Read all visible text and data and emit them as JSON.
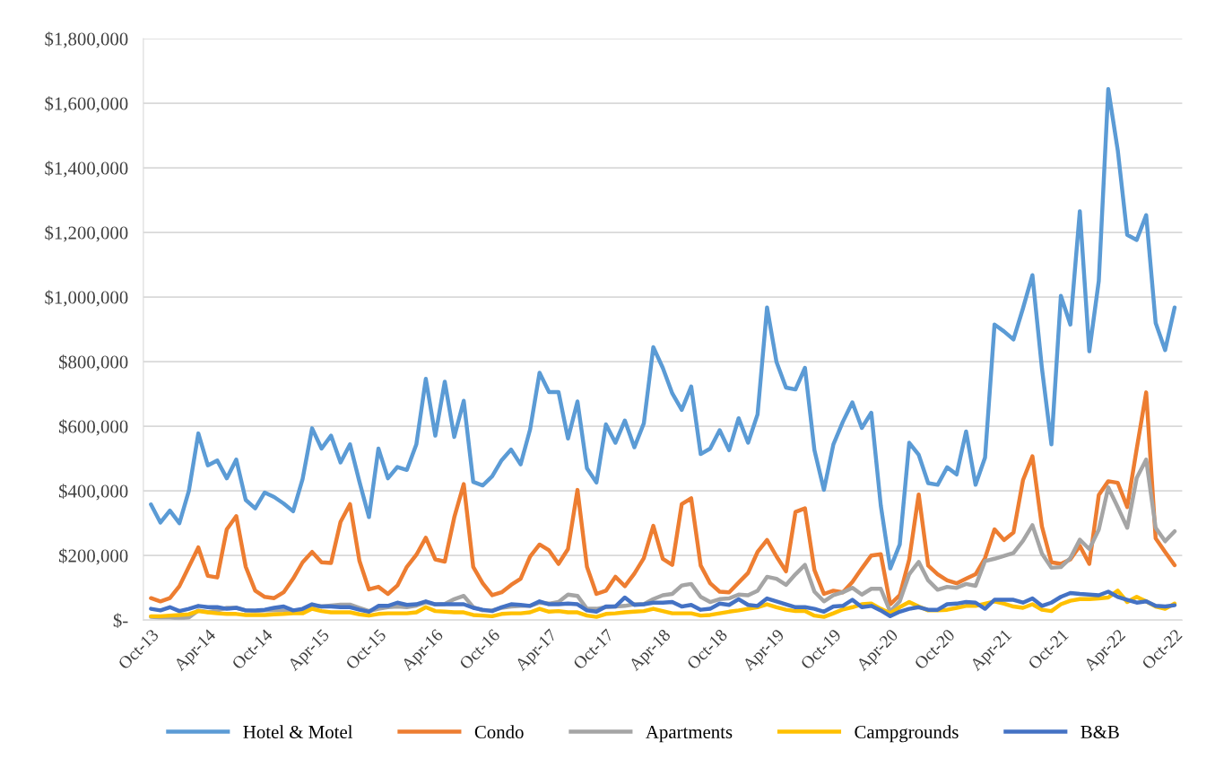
{
  "chart_data": {
    "type": "line",
    "categories": [
      "Oct-13",
      null,
      null,
      null,
      null,
      null,
      "Apr-14",
      null,
      null,
      null,
      null,
      null,
      "Oct-14",
      null,
      null,
      null,
      null,
      null,
      "Apr-15",
      null,
      null,
      null,
      null,
      null,
      "Oct-15",
      null,
      null,
      null,
      null,
      null,
      "Apr-16",
      null,
      null,
      null,
      null,
      null,
      "Oct-16",
      null,
      null,
      null,
      null,
      null,
      "Apr-17",
      null,
      null,
      null,
      null,
      null,
      "Oct-17",
      null,
      null,
      null,
      null,
      null,
      "Apr-18",
      null,
      null,
      null,
      null,
      null,
      "Oct-18",
      null,
      null,
      null,
      null,
      null,
      "Apr-19",
      null,
      null,
      null,
      null,
      null,
      "Oct-19",
      null,
      null,
      null,
      null,
      null,
      "Apr-20",
      null,
      null,
      null,
      null,
      null,
      "Oct-20",
      null,
      null,
      null,
      null,
      null,
      "Apr-21",
      null,
      null,
      null,
      null,
      null,
      "Oct-21",
      null,
      null,
      null,
      null,
      null,
      "Apr-22",
      null,
      null,
      null,
      null,
      null,
      "Oct-22"
    ],
    "series": [
      {
        "name": "Hotel & Motel",
        "color": "#5b9bd5",
        "values": [
          358000,
          302000,
          339000,
          300000,
          400000,
          578000,
          479000,
          494000,
          439000,
          497000,
          372000,
          346000,
          395000,
          381000,
          361000,
          337000,
          437000,
          594000,
          531000,
          571000,
          488000,
          544000,
          428000,
          319000,
          531000,
          439000,
          474000,
          465000,
          544000,
          747000,
          571000,
          738000,
          567000,
          679000,
          428000,
          417000,
          445000,
          495000,
          528000,
          482000,
          590000,
          766000,
          706000,
          706000,
          562000,
          677000,
          470000,
          426000,
          606000,
          549000,
          618000,
          535000,
          609000,
          845000,
          781000,
          702000,
          651000,
          723000,
          514000,
          531000,
          588000,
          526000,
          625000,
          549000,
          637000,
          968000,
          799000,
          720000,
          714000,
          781000,
          526000,
          403000,
          544000,
          614000,
          674000,
          595000,
          642000,
          355000,
          160000,
          234000,
          549000,
          512000,
          424000,
          419000,
          473000,
          451000,
          584000,
          419000,
          503000,
          915000,
          894000,
          869000,
          965000,
          1068000,
          780000,
          544000,
          1004000,
          915000,
          1266000,
          832000,
          1050000,
          1644000,
          1455000,
          1193000,
          1177000,
          1254000,
          920000,
          836000,
          968000
        ]
      },
      {
        "name": "Condo",
        "color": "#ed7d31",
        "values": [
          68000,
          58000,
          68000,
          105000,
          165000,
          225000,
          137000,
          132000,
          281000,
          322000,
          165000,
          91000,
          72000,
          68000,
          86000,
          128000,
          179000,
          211000,
          179000,
          177000,
          304000,
          359000,
          183000,
          95000,
          103000,
          81000,
          107000,
          165000,
          202000,
          255000,
          188000,
          181000,
          318000,
          421000,
          165000,
          114000,
          77000,
          86000,
          109000,
          128000,
          197000,
          234000,
          216000,
          174000,
          220000,
          403000,
          165000,
          81000,
          91000,
          134000,
          105000,
          144000,
          192000,
          292000,
          190000,
          171000,
          359000,
          377000,
          169000,
          114000,
          88000,
          86000,
          116000,
          146000,
          211000,
          248000,
          197000,
          151000,
          335000,
          346000,
          155000,
          81000,
          91000,
          86000,
          118000,
          160000,
          200000,
          204000,
          49000,
          77000,
          188000,
          389000,
          169000,
          142000,
          123000,
          114000,
          128000,
          142000,
          192000,
          281000,
          248000,
          271000,
          433000,
          507000,
          290000,
          179000,
          174000,
          188000,
          230000,
          174000,
          387000,
          430000,
          425000,
          350000,
          530000,
          705000,
          253000,
          211000,
          170000
        ]
      },
      {
        "name": "Apartments",
        "color": "#a5a5a5",
        "values": [
          10000,
          8000,
          8000,
          5000,
          8000,
          30000,
          25000,
          30000,
          38000,
          38000,
          30000,
          28000,
          30000,
          30000,
          30000,
          28000,
          30000,
          45000,
          42000,
          45000,
          48000,
          48000,
          38000,
          28000,
          35000,
          40000,
          42000,
          40000,
          45000,
          55000,
          48000,
          50000,
          65000,
          75000,
          40000,
          30000,
          30000,
          38000,
          42000,
          44000,
          44000,
          54000,
          51000,
          56000,
          79000,
          75000,
          35000,
          35000,
          40000,
          42000,
          44000,
          49000,
          49000,
          65000,
          77000,
          81000,
          107000,
          112000,
          72000,
          56000,
          65000,
          67000,
          79000,
          77000,
          91000,
          134000,
          128000,
          109000,
          142000,
          171000,
          88000,
          58000,
          77000,
          86000,
          100000,
          79000,
          97000,
          97000,
          26000,
          58000,
          142000,
          180000,
          123000,
          94000,
          103000,
          100000,
          112000,
          106000,
          183000,
          190000,
          199000,
          208000,
          245000,
          294000,
          206000,
          162000,
          164000,
          192000,
          249000,
          220000,
          280000,
          411000,
          350000,
          286000,
          440000,
          497000,
          286000,
          244000,
          275000
        ]
      },
      {
        "name": "Campgrounds",
        "color": "#ffc000",
        "values": [
          12000,
          12000,
          14000,
          16000,
          18000,
          28000,
          24000,
          21000,
          19000,
          19000,
          16000,
          16000,
          16000,
          18000,
          19000,
          21000,
          21000,
          35000,
          28000,
          24000,
          24000,
          24000,
          18000,
          14000,
          19000,
          21000,
          21000,
          21000,
          24000,
          40000,
          28000,
          26000,
          24000,
          24000,
          16000,
          14000,
          12000,
          19000,
          21000,
          21000,
          24000,
          35000,
          26000,
          28000,
          24000,
          24000,
          14000,
          10000,
          19000,
          21000,
          24000,
          26000,
          28000,
          35000,
          28000,
          21000,
          21000,
          21000,
          14000,
          16000,
          21000,
          26000,
          30000,
          35000,
          40000,
          49000,
          40000,
          32000,
          28000,
          28000,
          14000,
          10000,
          21000,
          33000,
          40000,
          49000,
          51000,
          35000,
          21000,
          40000,
          56000,
          42000,
          30000,
          30000,
          32000,
          38000,
          44000,
          44000,
          51000,
          58000,
          51000,
          42000,
          38000,
          49000,
          32000,
          28000,
          49000,
          60000,
          65000,
          65000,
          67000,
          70000,
          91000,
          56000,
          72000,
          58000,
          42000,
          35000,
          51000
        ]
      },
      {
        "name": "B&B",
        "color": "#4472c4",
        "values": [
          35000,
          30000,
          40000,
          28000,
          35000,
          44000,
          40000,
          40000,
          35000,
          38000,
          30000,
          30000,
          32000,
          38000,
          42000,
          30000,
          35000,
          49000,
          42000,
          42000,
          40000,
          40000,
          32000,
          26000,
          44000,
          44000,
          54000,
          47000,
          49000,
          58000,
          49000,
          49000,
          49000,
          49000,
          38000,
          32000,
          28000,
          40000,
          49000,
          47000,
          44000,
          58000,
          49000,
          49000,
          51000,
          49000,
          30000,
          26000,
          42000,
          42000,
          70000,
          47000,
          49000,
          54000,
          54000,
          56000,
          42000,
          47000,
          32000,
          35000,
          51000,
          47000,
          65000,
          47000,
          44000,
          67000,
          58000,
          49000,
          40000,
          40000,
          35000,
          26000,
          42000,
          44000,
          63000,
          40000,
          44000,
          30000,
          12000,
          26000,
          35000,
          40000,
          32000,
          32000,
          49000,
          51000,
          56000,
          54000,
          35000,
          63000,
          63000,
          63000,
          54000,
          67000,
          44000,
          54000,
          72000,
          84000,
          81000,
          79000,
          77000,
          88000,
          72000,
          63000,
          54000,
          58000,
          44000,
          42000,
          46000
        ]
      }
    ],
    "ylim": [
      0,
      1800000
    ],
    "yticks": [
      {
        "value": 0,
        "label": "$-"
      },
      {
        "value": 200000,
        "label": "$200,000"
      },
      {
        "value": 400000,
        "label": "$400,000"
      },
      {
        "value": 600000,
        "label": "$600,000"
      },
      {
        "value": 800000,
        "label": "$800,000"
      },
      {
        "value": 1000000,
        "label": "$1,000,000"
      },
      {
        "value": 1200000,
        "label": "$1,200,000"
      },
      {
        "value": 1400000,
        "label": "$1,400,000"
      },
      {
        "value": 1600000,
        "label": "$1,600,000"
      },
      {
        "value": 1800000,
        "label": "$1,800,000"
      }
    ],
    "grid": "y",
    "legend": "bottom",
    "marker": "none",
    "line_style": "solid"
  }
}
